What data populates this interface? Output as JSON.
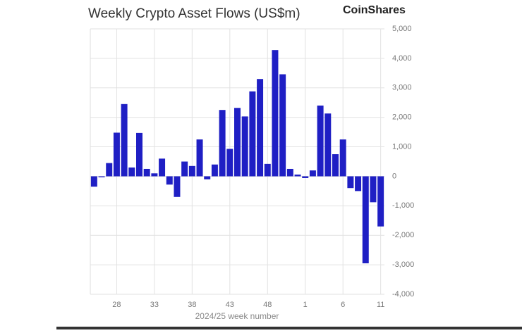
{
  "chart_data": {
    "type": "bar",
    "title": "Weekly Crypto Asset Flows (US$m)",
    "brand": "CoinShares",
    "x_label": "2024/25 week number",
    "categories": [
      null,
      null,
      null,
      "28",
      null,
      null,
      null,
      null,
      "33",
      null,
      null,
      null,
      null,
      "38",
      null,
      null,
      null,
      null,
      "43",
      null,
      null,
      null,
      null,
      "48",
      null,
      null,
      null,
      null,
      "1",
      null,
      null,
      null,
      null,
      "6",
      null,
      null,
      null,
      null,
      "11"
    ],
    "values": [
      -350,
      -30,
      450,
      1480,
      2450,
      300,
      1470,
      250,
      100,
      600,
      -280,
      -700,
      500,
      350,
      1250,
      -100,
      400,
      2250,
      930,
      2320,
      2030,
      2880,
      3300,
      420,
      4280,
      3460,
      250,
      60,
      -60,
      200,
      2400,
      2130,
      750,
      1250,
      -400,
      -500,
      -2950,
      -880,
      -1700
    ],
    "color": "#1f1fc4",
    "ylim": [
      -4000,
      5000
    ],
    "yticks": [
      {
        "value": -4000,
        "label": "-4,000"
      },
      {
        "value": -3000,
        "label": "-3,000"
      },
      {
        "value": -2000,
        "label": "-2,000"
      },
      {
        "value": -1000,
        "label": "-1,000"
      },
      0,
      {
        "value": 1000,
        "label": "1,000"
      },
      {
        "value": 2000,
        "label": "2,000"
      },
      {
        "value": 3000,
        "label": "3,000"
      },
      {
        "value": 4000,
        "label": "4,000"
      },
      {
        "value": 5000,
        "label": "5,000"
      }
    ],
    "grid": true
  }
}
